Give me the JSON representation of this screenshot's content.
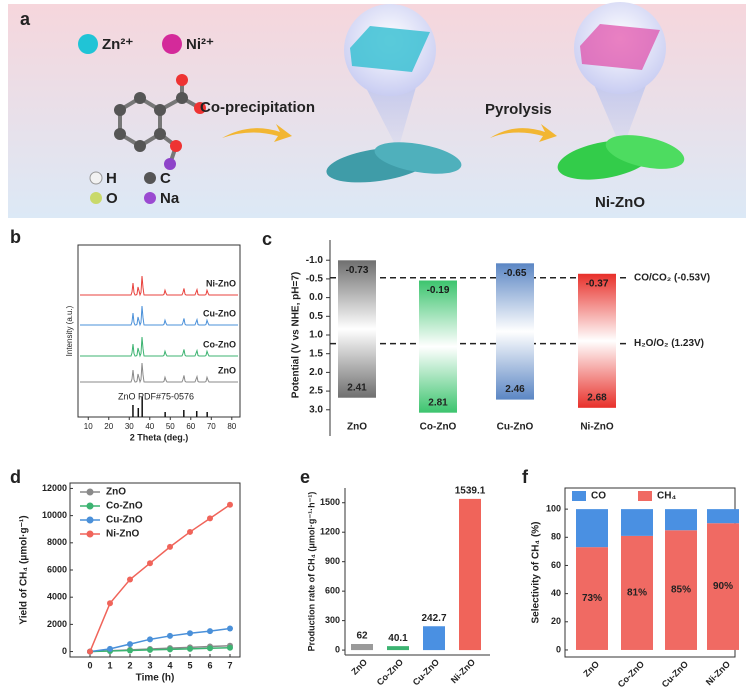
{
  "panel_a": {
    "label": "a",
    "ions": [
      "Zn²⁺",
      "Ni²⁺"
    ],
    "atoms": [
      "H",
      "C",
      "O",
      "Na"
    ],
    "steps": [
      "Co-precipitation",
      "Pyrolysis"
    ],
    "product": "Ni-ZnO"
  },
  "chart_data": [
    {
      "panel": "b",
      "type": "xrd",
      "xlabel": "2 Theta (deg.)",
      "ylabel": "Intensity (a.u.)",
      "xlim": [
        5,
        84
      ],
      "xticks": [
        10,
        20,
        30,
        40,
        50,
        60,
        70,
        80
      ],
      "series": [
        {
          "name": "Ni-ZnO",
          "color": "#e8413c"
        },
        {
          "name": "Cu-ZnO",
          "color": "#4a90d9"
        },
        {
          "name": "Co-ZnO",
          "color": "#3cb371"
        },
        {
          "name": "ZnO",
          "color": "#8a8a8a"
        }
      ],
      "reference": "ZnO PDF#75-0576",
      "peaks": [
        31.8,
        34.4,
        36.3,
        47.5,
        56.6,
        62.9,
        68.0
      ],
      "intensities": [
        0.6,
        0.45,
        1,
        0.25,
        0.35,
        0.3,
        0.25
      ]
    },
    {
      "panel": "c",
      "type": "band",
      "ylabel": "Potential (V vs NHE, pH=7)",
      "ylim": [
        -1.3,
        3.3
      ],
      "yticks": [
        {
          "value": -1,
          "label": "-1.0"
        },
        {
          "value": -0.5,
          "label": "-0.5"
        },
        {
          "value": 0,
          "label": "0.0"
        },
        {
          "value": 0.5,
          "label": "0.5"
        },
        {
          "value": 1,
          "label": "1.0"
        },
        {
          "value": 1.5,
          "label": "1.5"
        },
        {
          "value": 2,
          "label": "2.0"
        },
        {
          "value": 2.5,
          "label": "2.5"
        },
        {
          "value": 3,
          "label": "3.0"
        }
      ],
      "categories": [
        "ZnO",
        "Co-ZnO",
        "Cu-ZnO",
        "Ni-ZnO"
      ],
      "colors": [
        "#6f6f6f",
        "#3cc46e",
        "#5b86c4",
        "#e8302a"
      ],
      "cb": [
        -0.73,
        -0.19,
        -0.65,
        -0.37
      ],
      "vb": [
        2.41,
        2.81,
        2.46,
        2.68
      ],
      "references": [
        {
          "value": -0.53,
          "label": "CO/CO₂ (-0.53V)"
        },
        {
          "value": 1.23,
          "label": "H₂O/O₂ (1.23V)"
        }
      ]
    },
    {
      "panel": "d",
      "type": "line",
      "xlabel": "Time (h)",
      "ylabel": "Yield of CH₄ (μmol·g⁻¹)",
      "x": [
        0,
        1,
        2,
        3,
        4,
        5,
        6,
        7
      ],
      "xlim": [
        -1,
        7.5
      ],
      "xticks": [
        0,
        1,
        2,
        3,
        4,
        5,
        6,
        7
      ],
      "ylim": [
        -400,
        12400
      ],
      "yticks": [
        0,
        2000,
        4000,
        6000,
        8000,
        10000,
        12000
      ],
      "series": [
        {
          "name": "ZnO",
          "color": "#8a8a8a",
          "values": [
            0,
            60,
            125,
            185,
            250,
            310,
            370,
            430
          ]
        },
        {
          "name": "Co-ZnO",
          "color": "#3cb371",
          "values": [
            0,
            40,
            80,
            120,
            160,
            200,
            240,
            280
          ]
        },
        {
          "name": "Cu-ZnO",
          "color": "#4a90d9",
          "values": [
            0,
            200,
            550,
            900,
            1150,
            1350,
            1500,
            1700
          ]
        },
        {
          "name": "Ni-ZnO",
          "color": "#f0645a",
          "values": [
            0,
            3550,
            5300,
            6500,
            7700,
            8800,
            9800,
            10800
          ]
        }
      ]
    },
    {
      "panel": "e",
      "type": "bar",
      "ylabel": "Production rate of CH₄ (μmol·g⁻¹·h⁻¹)",
      "categories": [
        "ZnO",
        "Co-ZnO",
        "Cu-ZnO",
        "Ni-ZnO"
      ],
      "values": [
        62,
        40.1,
        242.7,
        1539.1
      ],
      "colors": [
        "#9a9a9a",
        "#3cb371",
        "#4a90e2",
        "#f0645a"
      ],
      "ylim": [
        -50,
        1650
      ],
      "yticks": [
        0,
        300,
        600,
        900,
        1200,
        1500
      ]
    },
    {
      "panel": "f",
      "type": "stacked_bar",
      "ylabel": "Selectivity of CH₄ (%)",
      "categories": [
        "ZnO",
        "Co-ZnO",
        "Cu-ZnO",
        "Ni-ZnO"
      ],
      "ylim": [
        -5,
        115
      ],
      "yticks": [
        0,
        20,
        40,
        60,
        80,
        100
      ],
      "series": [
        {
          "name": "CH₄",
          "color": "#f06a63",
          "values": [
            73,
            81,
            85,
            90
          ],
          "value_labels": [
            "73%",
            "81%",
            "85%",
            "90%"
          ]
        },
        {
          "name": "CO",
          "color": "#4a90e2",
          "values": [
            27,
            19,
            15,
            10
          ]
        }
      ]
    }
  ]
}
